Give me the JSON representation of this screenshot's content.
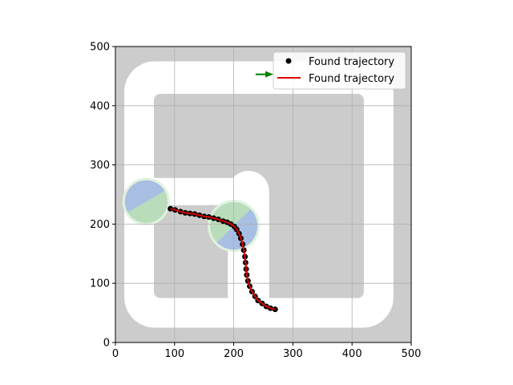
{
  "chart_data": {
    "type": "scatter",
    "xlim": [
      0,
      500
    ],
    "ylim": [
      0,
      500
    ],
    "x_ticks": [
      "0",
      "100",
      "200",
      "300",
      "400",
      "500"
    ],
    "y_ticks": [
      "0",
      "100",
      "200",
      "300",
      "400",
      "500"
    ],
    "grid": true,
    "legend_placement": "top-right",
    "legend": [
      {
        "label": "Found trajectory",
        "marker": "black-dot"
      },
      {
        "label": "Found trajectory",
        "marker": "red-line"
      }
    ],
    "colors": {
      "background": "#cccccc",
      "road": "#ffffff",
      "blue_region": "#a8bfe3",
      "green_region": "#b9dcbb",
      "trajectory_line": "#dd0000",
      "trajectory_points": "#000000",
      "arrow": "#008000"
    },
    "road_outer": {
      "xmin": 15,
      "xmax": 470,
      "ymin": 25,
      "ymax": 475
    },
    "road_holes": [
      {
        "xmin": 65,
        "xmax": 420,
        "ymin": 75,
        "ymax": 420
      }
    ],
    "road_segments": [
      {
        "x1": 65,
        "y1": 255,
        "x2": 200,
        "y2": 255,
        "width": 46
      },
      {
        "x1": 225,
        "y1": 255,
        "x2": 225,
        "y2": 75,
        "width": 70
      }
    ],
    "regions": [
      {
        "cx": 52,
        "cy": 238,
        "r": 36,
        "kind": "blue-green",
        "split_angle": 30
      },
      {
        "cx": 200,
        "cy": 197,
        "r": 40,
        "kind": "blue-green",
        "split_angle": 225
      }
    ],
    "arrow": {
      "x": 237,
      "y": 453,
      "dx": 30,
      "dy": 0
    },
    "trajectory": [
      [
        93,
        226
      ],
      [
        101,
        224
      ],
      [
        110,
        221
      ],
      [
        118,
        219
      ],
      [
        126,
        218
      ],
      [
        134,
        217
      ],
      [
        142,
        215
      ],
      [
        150,
        213
      ],
      [
        158,
        212
      ],
      [
        166,
        210
      ],
      [
        174,
        208
      ],
      [
        182,
        205
      ],
      [
        189,
        203
      ],
      [
        195,
        200
      ],
      [
        201,
        196
      ],
      [
        205,
        191
      ],
      [
        209,
        184
      ],
      [
        212,
        176
      ],
      [
        215,
        166
      ],
      [
        217,
        156
      ],
      [
        219,
        145
      ],
      [
        220,
        135
      ],
      [
        221,
        124
      ],
      [
        222,
        114
      ],
      [
        224,
        104
      ],
      [
        227,
        95
      ],
      [
        231,
        86
      ],
      [
        236,
        78
      ],
      [
        241,
        71
      ],
      [
        248,
        66
      ],
      [
        255,
        61
      ],
      [
        262,
        58
      ],
      [
        270,
        56
      ]
    ]
  }
}
